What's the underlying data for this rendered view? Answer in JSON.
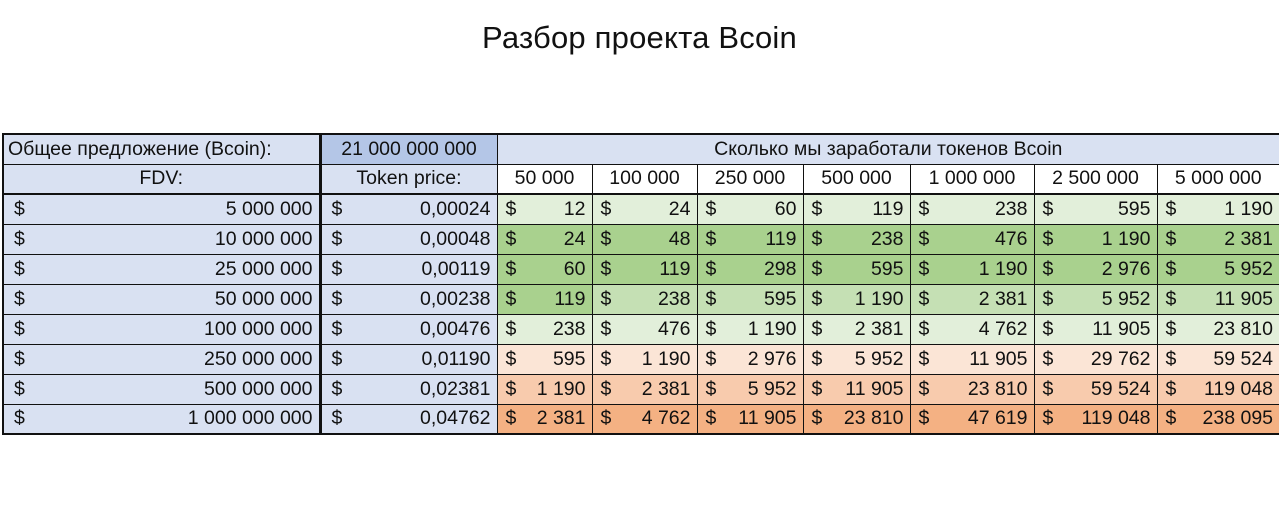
{
  "title": "Разбор проекта Bcoin",
  "header": {
    "supply_label": "Общее предложение (Bcoin):",
    "supply_value": "21 000 000 000",
    "earned_label": "Сколько мы заработали токенов Bcoin",
    "fdv_label": "FDV:",
    "price_label": "Token price:",
    "currency": "$",
    "columns": [
      "50 000",
      "100 000",
      "250 000",
      "500 000",
      "1 000 000",
      "2 500 000",
      "5 000 000"
    ]
  },
  "rows": [
    {
      "fdv": "5 000 000",
      "price": "0,00024",
      "values": [
        "12",
        "24",
        "60",
        "119",
        "238",
        "595",
        "1 190"
      ],
      "colors": [
        "#e2efda",
        "#e2efda",
        "#e2efda",
        "#e2efda",
        "#e2efda",
        "#e2efda",
        "#e2efda"
      ]
    },
    {
      "fdv": "10 000 000",
      "price": "0,00048",
      "values": [
        "24",
        "48",
        "119",
        "238",
        "476",
        "1 190",
        "2 381"
      ],
      "colors": [
        "#a9d18e",
        "#a9d18e",
        "#a9d18e",
        "#a9d18e",
        "#a9d18e",
        "#a9d18e",
        "#a9d18e"
      ]
    },
    {
      "fdv": "25 000 000",
      "price": "0,00119",
      "values": [
        "60",
        "119",
        "298",
        "595",
        "1 190",
        "2 976",
        "5 952"
      ],
      "colors": [
        "#a9d18e",
        "#a9d18e",
        "#a9d18e",
        "#a9d18e",
        "#a9d18e",
        "#a9d18e",
        "#a9d18e"
      ]
    },
    {
      "fdv": "50 000 000",
      "price": "0,00238",
      "values": [
        "119",
        "238",
        "595",
        "1 190",
        "2 381",
        "5 952",
        "11 905"
      ],
      "colors": [
        "#a9d18e",
        "#c5e0b4",
        "#c5e0b4",
        "#c5e0b4",
        "#c5e0b4",
        "#c5e0b4",
        "#c5e0b4"
      ]
    },
    {
      "fdv": "100 000 000",
      "price": "0,00476",
      "values": [
        "238",
        "476",
        "1 190",
        "2 381",
        "4 762",
        "11 905",
        "23 810"
      ],
      "colors": [
        "#e2efda",
        "#e2efda",
        "#e2efda",
        "#e2efda",
        "#e2efda",
        "#e2efda",
        "#e2efda"
      ]
    },
    {
      "fdv": "250 000 000",
      "price": "0,01190",
      "values": [
        "595",
        "1 190",
        "2 976",
        "5 952",
        "11 905",
        "29 762",
        "59 524"
      ],
      "colors": [
        "#fbe5d6",
        "#fbe5d6",
        "#fbe5d6",
        "#fbe5d6",
        "#fbe5d6",
        "#fbe5d6",
        "#fbe5d6"
      ]
    },
    {
      "fdv": "500 000 000",
      "price": "0,02381",
      "values": [
        "1 190",
        "2 381",
        "5 952",
        "11 905",
        "23 810",
        "59 524",
        "119 048"
      ],
      "colors": [
        "#f8cbad",
        "#f8cbad",
        "#f8cbad",
        "#f8cbad",
        "#f8cbad",
        "#f8cbad",
        "#f8cbad"
      ]
    },
    {
      "fdv": "1 000 000 000",
      "price": "0,04762",
      "values": [
        "2 381",
        "4 762",
        "11 905",
        "23 810",
        "47 619",
        "119 048",
        "238 095"
      ],
      "colors": [
        "#f4b183",
        "#f4b183",
        "#f4b183",
        "#f4b183",
        "#f4b183",
        "#f4b183",
        "#f4b183"
      ]
    }
  ]
}
